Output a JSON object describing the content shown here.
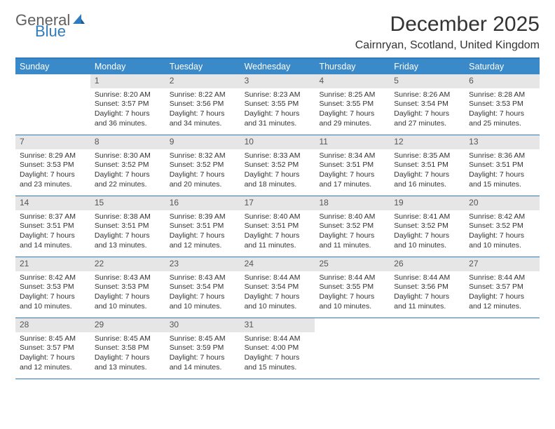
{
  "logo": {
    "text1": "General",
    "text2": "Blue"
  },
  "title": "December 2025",
  "location": "Cairnryan, Scotland, United Kingdom",
  "colors": {
    "header_bg": "#3a89c9",
    "header_text": "#ffffff",
    "border": "#2f7bbf",
    "daynum_bg": "#e6e6e6",
    "text": "#333333",
    "logo_gray": "#606060",
    "logo_blue": "#2f7bbf"
  },
  "days_of_week": [
    "Sunday",
    "Monday",
    "Tuesday",
    "Wednesday",
    "Thursday",
    "Friday",
    "Saturday"
  ],
  "weeks": [
    [
      {
        "n": "",
        "sunrise": "",
        "sunset": "",
        "daylight": ""
      },
      {
        "n": "1",
        "sunrise": "Sunrise: 8:20 AM",
        "sunset": "Sunset: 3:57 PM",
        "daylight": "Daylight: 7 hours and 36 minutes."
      },
      {
        "n": "2",
        "sunrise": "Sunrise: 8:22 AM",
        "sunset": "Sunset: 3:56 PM",
        "daylight": "Daylight: 7 hours and 34 minutes."
      },
      {
        "n": "3",
        "sunrise": "Sunrise: 8:23 AM",
        "sunset": "Sunset: 3:55 PM",
        "daylight": "Daylight: 7 hours and 31 minutes."
      },
      {
        "n": "4",
        "sunrise": "Sunrise: 8:25 AM",
        "sunset": "Sunset: 3:55 PM",
        "daylight": "Daylight: 7 hours and 29 minutes."
      },
      {
        "n": "5",
        "sunrise": "Sunrise: 8:26 AM",
        "sunset": "Sunset: 3:54 PM",
        "daylight": "Daylight: 7 hours and 27 minutes."
      },
      {
        "n": "6",
        "sunrise": "Sunrise: 8:28 AM",
        "sunset": "Sunset: 3:53 PM",
        "daylight": "Daylight: 7 hours and 25 minutes."
      }
    ],
    [
      {
        "n": "7",
        "sunrise": "Sunrise: 8:29 AM",
        "sunset": "Sunset: 3:53 PM",
        "daylight": "Daylight: 7 hours and 23 minutes."
      },
      {
        "n": "8",
        "sunrise": "Sunrise: 8:30 AM",
        "sunset": "Sunset: 3:52 PM",
        "daylight": "Daylight: 7 hours and 22 minutes."
      },
      {
        "n": "9",
        "sunrise": "Sunrise: 8:32 AM",
        "sunset": "Sunset: 3:52 PM",
        "daylight": "Daylight: 7 hours and 20 minutes."
      },
      {
        "n": "10",
        "sunrise": "Sunrise: 8:33 AM",
        "sunset": "Sunset: 3:52 PM",
        "daylight": "Daylight: 7 hours and 18 minutes."
      },
      {
        "n": "11",
        "sunrise": "Sunrise: 8:34 AM",
        "sunset": "Sunset: 3:51 PM",
        "daylight": "Daylight: 7 hours and 17 minutes."
      },
      {
        "n": "12",
        "sunrise": "Sunrise: 8:35 AM",
        "sunset": "Sunset: 3:51 PM",
        "daylight": "Daylight: 7 hours and 16 minutes."
      },
      {
        "n": "13",
        "sunrise": "Sunrise: 8:36 AM",
        "sunset": "Sunset: 3:51 PM",
        "daylight": "Daylight: 7 hours and 15 minutes."
      }
    ],
    [
      {
        "n": "14",
        "sunrise": "Sunrise: 8:37 AM",
        "sunset": "Sunset: 3:51 PM",
        "daylight": "Daylight: 7 hours and 14 minutes."
      },
      {
        "n": "15",
        "sunrise": "Sunrise: 8:38 AM",
        "sunset": "Sunset: 3:51 PM",
        "daylight": "Daylight: 7 hours and 13 minutes."
      },
      {
        "n": "16",
        "sunrise": "Sunrise: 8:39 AM",
        "sunset": "Sunset: 3:51 PM",
        "daylight": "Daylight: 7 hours and 12 minutes."
      },
      {
        "n": "17",
        "sunrise": "Sunrise: 8:40 AM",
        "sunset": "Sunset: 3:51 PM",
        "daylight": "Daylight: 7 hours and 11 minutes."
      },
      {
        "n": "18",
        "sunrise": "Sunrise: 8:40 AM",
        "sunset": "Sunset: 3:52 PM",
        "daylight": "Daylight: 7 hours and 11 minutes."
      },
      {
        "n": "19",
        "sunrise": "Sunrise: 8:41 AM",
        "sunset": "Sunset: 3:52 PM",
        "daylight": "Daylight: 7 hours and 10 minutes."
      },
      {
        "n": "20",
        "sunrise": "Sunrise: 8:42 AM",
        "sunset": "Sunset: 3:52 PM",
        "daylight": "Daylight: 7 hours and 10 minutes."
      }
    ],
    [
      {
        "n": "21",
        "sunrise": "Sunrise: 8:42 AM",
        "sunset": "Sunset: 3:53 PM",
        "daylight": "Daylight: 7 hours and 10 minutes."
      },
      {
        "n": "22",
        "sunrise": "Sunrise: 8:43 AM",
        "sunset": "Sunset: 3:53 PM",
        "daylight": "Daylight: 7 hours and 10 minutes."
      },
      {
        "n": "23",
        "sunrise": "Sunrise: 8:43 AM",
        "sunset": "Sunset: 3:54 PM",
        "daylight": "Daylight: 7 hours and 10 minutes."
      },
      {
        "n": "24",
        "sunrise": "Sunrise: 8:44 AM",
        "sunset": "Sunset: 3:54 PM",
        "daylight": "Daylight: 7 hours and 10 minutes."
      },
      {
        "n": "25",
        "sunrise": "Sunrise: 8:44 AM",
        "sunset": "Sunset: 3:55 PM",
        "daylight": "Daylight: 7 hours and 10 minutes."
      },
      {
        "n": "26",
        "sunrise": "Sunrise: 8:44 AM",
        "sunset": "Sunset: 3:56 PM",
        "daylight": "Daylight: 7 hours and 11 minutes."
      },
      {
        "n": "27",
        "sunrise": "Sunrise: 8:44 AM",
        "sunset": "Sunset: 3:57 PM",
        "daylight": "Daylight: 7 hours and 12 minutes."
      }
    ],
    [
      {
        "n": "28",
        "sunrise": "Sunrise: 8:45 AM",
        "sunset": "Sunset: 3:57 PM",
        "daylight": "Daylight: 7 hours and 12 minutes."
      },
      {
        "n": "29",
        "sunrise": "Sunrise: 8:45 AM",
        "sunset": "Sunset: 3:58 PM",
        "daylight": "Daylight: 7 hours and 13 minutes."
      },
      {
        "n": "30",
        "sunrise": "Sunrise: 8:45 AM",
        "sunset": "Sunset: 3:59 PM",
        "daylight": "Daylight: 7 hours and 14 minutes."
      },
      {
        "n": "31",
        "sunrise": "Sunrise: 8:44 AM",
        "sunset": "Sunset: 4:00 PM",
        "daylight": "Daylight: 7 hours and 15 minutes."
      },
      {
        "n": "",
        "sunrise": "",
        "sunset": "",
        "daylight": ""
      },
      {
        "n": "",
        "sunrise": "",
        "sunset": "",
        "daylight": ""
      },
      {
        "n": "",
        "sunrise": "",
        "sunset": "",
        "daylight": ""
      }
    ]
  ]
}
